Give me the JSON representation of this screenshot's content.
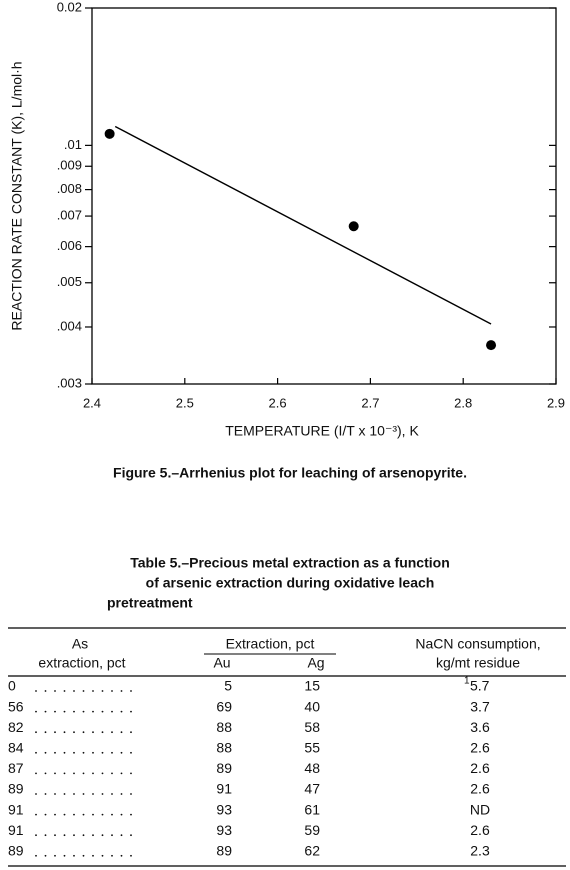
{
  "chart_data": {
    "type": "scatter",
    "x_label": "TEMPERATURE (I/T x 10⁻³), K",
    "y_label": "REACTION RATE CONSTANT (K), L/mol·h",
    "y_log": true,
    "xlim": [
      2.4,
      2.9
    ],
    "xticks": [
      2.4,
      2.5,
      2.6,
      2.7,
      2.8,
      2.9
    ],
    "ylim": [
      0.003,
      0.02
    ],
    "yticks": [
      {
        "value": 0.003,
        "label": ".003"
      },
      {
        "value": 0.004,
        "label": ".004"
      },
      {
        "value": 0.005,
        "label": ".005"
      },
      {
        "value": 0.006,
        "label": ".006"
      },
      {
        "value": 0.007,
        "label": ".007"
      },
      {
        "value": 0.008,
        "label": ".008"
      },
      {
        "value": 0.009,
        "label": ".009"
      },
      {
        "value": 0.01,
        "label": ".01"
      },
      0.02
    ],
    "series": [
      {
        "type": "scatter",
        "color": "#000000",
        "x": [
          2.419,
          2.682,
          2.83
        ],
        "values": [
          0.0106,
          0.00665,
          0.00365
        ]
      },
      {
        "type": "line",
        "color": "#000000",
        "x": [
          2.425,
          2.83
        ],
        "values": [
          0.011,
          0.00406
        ]
      }
    ]
  },
  "caption": "Figure 5.–Arrhenius plot for leaching of arsenopyrite.",
  "table": {
    "title_lines": [
      "Table 5.–Precious metal extraction as a function",
      "of arsenic extraction during oxidative leach",
      "pretreatment"
    ],
    "headers": {
      "as": [
        "As",
        "extraction, pct"
      ],
      "group": "Extraction, pct",
      "au": "Au",
      "ag": "Ag",
      "nacn": [
        "NaCN consumption,",
        "kg/mt residue"
      ]
    },
    "rows": [
      [
        "0",
        "5",
        "15",
        {
          "note": "1",
          "text": "5.7"
        }
      ],
      [
        "56",
        "69",
        "40",
        "3.7"
      ],
      [
        "82",
        "88",
        "58",
        "3.6"
      ],
      [
        "84",
        "88",
        "55",
        "2.6"
      ],
      [
        "87",
        "89",
        "48",
        "2.6"
      ],
      [
        "89",
        "91",
        "47",
        "2.6"
      ],
      [
        "91",
        "93",
        "61",
        "ND"
      ],
      [
        "91",
        "93",
        "59",
        "2.6"
      ],
      [
        "89",
        "89",
        "62",
        "2.3"
      ]
    ]
  }
}
